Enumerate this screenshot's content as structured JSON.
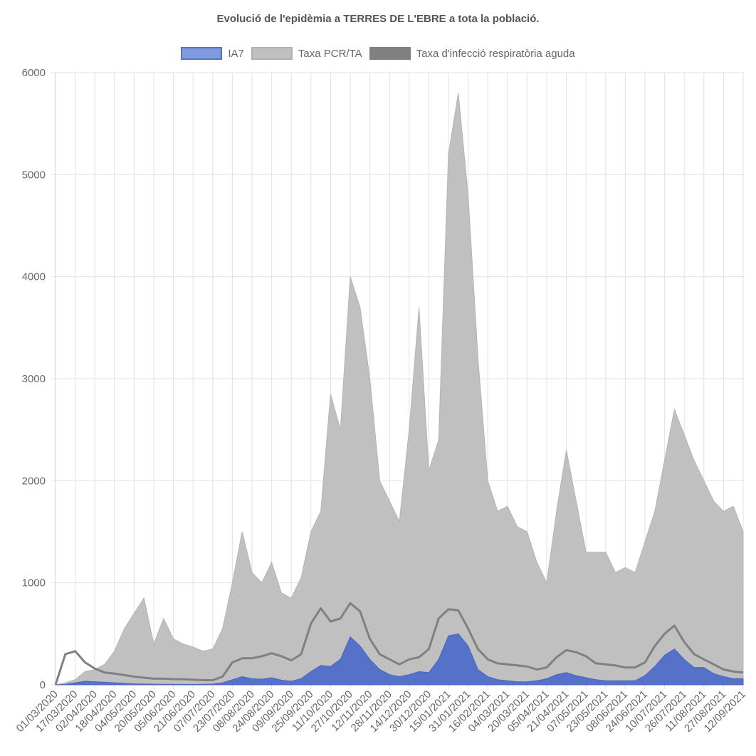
{
  "chart_data": {
    "type": "area",
    "title": "Evolució de l'epidèmia a TERRES DE L'EBRE a tota la població.",
    "xlabel": "",
    "ylabel": "",
    "ylim": [
      0,
      6000
    ],
    "yticks": [
      "0",
      "1000",
      "2000",
      "3000",
      "4000",
      "5000",
      "6000"
    ],
    "x_start": "01/03/2020",
    "x_step_days": 8,
    "tick_step_days": 16,
    "xticks": [
      "01/03/2020",
      "17/03/2020",
      "02/04/2020",
      "18/04/2020",
      "04/05/2020",
      "20/05/2020",
      "05/06/2020",
      "21/06/2020",
      "07/07/2020",
      "23/07/2020",
      "08/08/2020",
      "24/08/2020",
      "09/09/2020",
      "25/09/2020",
      "11/10/2020",
      "27/10/2020",
      "12/11/2020",
      "28/11/2020",
      "14/12/2020",
      "30/12/2020",
      "15/01/2021",
      "31/01/2021",
      "16/02/2021",
      "04/03/2021",
      "20/03/2021",
      "05/04/2021",
      "21/04/2021",
      "07/05/2021",
      "23/05/2021",
      "08/06/2021",
      "24/06/2021",
      "10/07/2021",
      "26/07/2021",
      "11/08/2021",
      "27/08/2021",
      "12/09/2021"
    ],
    "grid": true,
    "legend_position": "top",
    "series": [
      {
        "name": "IA7",
        "color": "#5572c8",
        "legend_color": "#7f9ce0",
        "kind": "area",
        "values": [
          0,
          5,
          20,
          35,
          30,
          25,
          20,
          15,
          10,
          8,
          6,
          5,
          5,
          4,
          4,
          5,
          8,
          20,
          50,
          80,
          60,
          55,
          70,
          45,
          35,
          60,
          130,
          190,
          180,
          250,
          470,
          380,
          250,
          150,
          100,
          80,
          100,
          130,
          120,
          250,
          480,
          500,
          380,
          150,
          80,
          50,
          40,
          30,
          30,
          40,
          60,
          100,
          120,
          90,
          70,
          50,
          40,
          40,
          40,
          40,
          90,
          180,
          290,
          350,
          250,
          170,
          170,
          110,
          80,
          60,
          60
        ]
      },
      {
        "name": "Taxa PCR/TA",
        "color": "#c0c0c0",
        "legend_color": "#c0c0c0",
        "kind": "area",
        "values": [
          0,
          20,
          50,
          130,
          150,
          200,
          330,
          550,
          700,
          850,
          400,
          650,
          450,
          400,
          370,
          330,
          350,
          550,
          1000,
          1500,
          1100,
          1000,
          1200,
          900,
          850,
          1050,
          1500,
          1700,
          2850,
          2500,
          4000,
          3700,
          3000,
          2000,
          1800,
          1600,
          2500,
          3700,
          2100,
          2400,
          5200,
          5800,
          4800,
          3200,
          2000,
          1700,
          1750,
          1550,
          1500,
          1200,
          1000,
          1700,
          2300,
          1800,
          1300,
          1300,
          1300,
          1100,
          1150,
          1100,
          1400,
          1700,
          2200,
          2700,
          2450,
          2200,
          2000,
          1800,
          1700,
          1750,
          1500
        ]
      },
      {
        "name": "Taxa d'infecció respiratòria aguda",
        "color": "#808080",
        "legend_color": "#808080",
        "kind": "line",
        "values": [
          0,
          300,
          330,
          220,
          160,
          120,
          110,
          95,
          80,
          70,
          60,
          60,
          55,
          55,
          50,
          45,
          45,
          80,
          220,
          260,
          260,
          280,
          310,
          280,
          240,
          300,
          600,
          750,
          620,
          650,
          800,
          720,
          450,
          300,
          250,
          200,
          250,
          270,
          350,
          650,
          740,
          730,
          550,
          350,
          250,
          210,
          200,
          190,
          180,
          150,
          170,
          270,
          340,
          320,
          280,
          210,
          200,
          190,
          170,
          170,
          220,
          380,
          500,
          580,
          420,
          300,
          250,
          200,
          150,
          130,
          120
        ]
      }
    ]
  }
}
